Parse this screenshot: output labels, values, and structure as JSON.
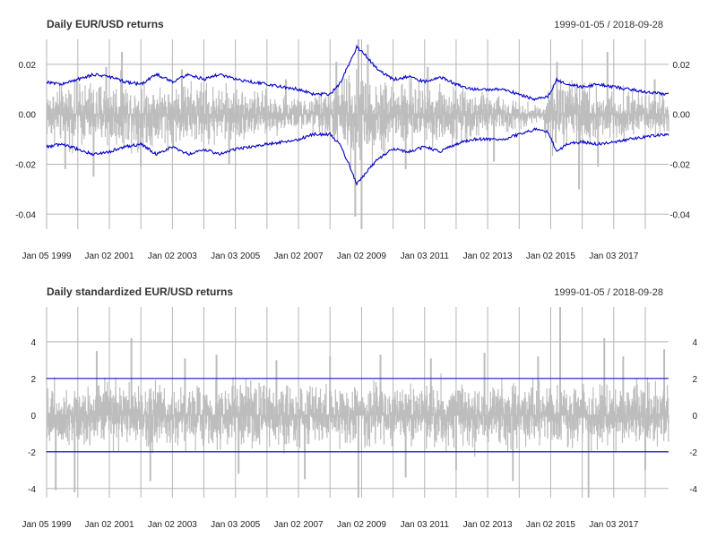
{
  "chart_data": [
    {
      "type": "line",
      "title": "Daily EUR/USD returns",
      "date_range": "1999-01-05 / 2018-09-28",
      "xlabel": "",
      "ylabel": "",
      "x_tick_labels": [
        "Jan 05 1999",
        "Jan 02 2001",
        "Jan 02 2003",
        "Jan 03 2005",
        "Jan 02 2007",
        "Jan 02 2009",
        "Jan 03 2011",
        "Jan 02 2013",
        "Jan 02 2015",
        "Jan 03 2017"
      ],
      "x_tick_years": [
        1999.01,
        2001.0,
        2003.0,
        2005.0,
        2007.0,
        2009.0,
        2011.0,
        2013.0,
        2015.0,
        2017.0
      ],
      "xlim": [
        1999.01,
        2018.74
      ],
      "y_ticks": [
        0.02,
        0.0,
        -0.02,
        -0.04
      ],
      "y_tick_labels": [
        "0.02",
        "0.00",
        "-0.02",
        "-0.04"
      ],
      "ylim": [
        -0.046,
        0.03
      ],
      "grid": true,
      "series": [
        {
          "role": "returns",
          "color": "#bdbdbd",
          "envelope": [
            [
              1999.0,
              0.016
            ],
            [
              2000.0,
              0.02
            ],
            [
              2001.0,
              0.021
            ],
            [
              2002.0,
              0.019
            ],
            [
              2003.0,
              0.019
            ],
            [
              2004.0,
              0.019
            ],
            [
              2005.0,
              0.017
            ],
            [
              2006.0,
              0.013
            ],
            [
              2007.0,
              0.009
            ],
            [
              2008.0,
              0.016
            ],
            [
              2008.7,
              0.03
            ],
            [
              2009.0,
              0.028
            ],
            [
              2010.0,
              0.022
            ],
            [
              2011.0,
              0.02
            ],
            [
              2012.0,
              0.017
            ],
            [
              2013.0,
              0.013
            ],
            [
              2014.0,
              0.009
            ],
            [
              2014.7,
              0.004
            ],
            [
              2015.0,
              0.022
            ],
            [
              2016.0,
              0.018
            ],
            [
              2017.0,
              0.015
            ],
            [
              2018.0,
              0.012
            ],
            [
              2018.74,
              0.012
            ]
          ],
          "spikes": [
            [
              1999.6,
              -0.022
            ],
            [
              2000.5,
              -0.025
            ],
            [
              2000.9,
              0.019
            ],
            [
              2001.4,
              0.025
            ],
            [
              2002.0,
              -0.021
            ],
            [
              2003.3,
              0.018
            ],
            [
              2004.8,
              -0.02
            ],
            [
              2006.6,
              0.014
            ],
            [
              2008.2,
              0.021
            ],
            [
              2008.8,
              -0.041
            ],
            [
              2008.9,
              0.03
            ],
            [
              2009.0,
              -0.046
            ],
            [
              2009.2,
              0.028
            ],
            [
              2010.4,
              -0.022
            ],
            [
              2011.1,
              0.019
            ],
            [
              2013.2,
              -0.019
            ],
            [
              2015.2,
              0.021
            ],
            [
              2015.9,
              -0.03
            ],
            [
              2016.5,
              -0.021
            ],
            [
              2016.8,
              0.025
            ],
            [
              2018.3,
              0.014
            ]
          ]
        },
        {
          "role": "upper band",
          "color": "#0000cc",
          "points": [
            [
              1999.0,
              0.013
            ],
            [
              1999.5,
              0.012
            ],
            [
              2000.0,
              0.014
            ],
            [
              2000.5,
              0.016
            ],
            [
              2001.0,
              0.015
            ],
            [
              2001.5,
              0.013
            ],
            [
              2002.0,
              0.012
            ],
            [
              2002.5,
              0.016
            ],
            [
              2003.0,
              0.013
            ],
            [
              2003.5,
              0.016
            ],
            [
              2004.0,
              0.014
            ],
            [
              2004.5,
              0.016
            ],
            [
              2005.0,
              0.014
            ],
            [
              2005.5,
              0.013
            ],
            [
              2006.0,
              0.012
            ],
            [
              2006.5,
              0.011
            ],
            [
              2007.0,
              0.01
            ],
            [
              2007.5,
              0.008
            ],
            [
              2008.0,
              0.008
            ],
            [
              2008.3,
              0.012
            ],
            [
              2008.6,
              0.02
            ],
            [
              2008.85,
              0.027
            ],
            [
              2009.1,
              0.024
            ],
            [
              2009.5,
              0.018
            ],
            [
              2010.0,
              0.014
            ],
            [
              2010.5,
              0.015
            ],
            [
              2011.0,
              0.013
            ],
            [
              2011.5,
              0.015
            ],
            [
              2012.0,
              0.012
            ],
            [
              2012.5,
              0.01
            ],
            [
              2013.0,
              0.01
            ],
            [
              2013.5,
              0.01
            ],
            [
              2014.0,
              0.008
            ],
            [
              2014.5,
              0.006
            ],
            [
              2014.9,
              0.007
            ],
            [
              2015.2,
              0.014
            ],
            [
              2015.5,
              0.012
            ],
            [
              2016.0,
              0.011
            ],
            [
              2016.5,
              0.012
            ],
            [
              2017.0,
              0.011
            ],
            [
              2017.5,
              0.01
            ],
            [
              2018.0,
              0.009
            ],
            [
              2018.74,
              0.008
            ]
          ]
        },
        {
          "role": "lower band",
          "color": "#0000cc",
          "points": [
            [
              1999.0,
              -0.013
            ],
            [
              1999.5,
              -0.012
            ],
            [
              2000.0,
              -0.014
            ],
            [
              2000.5,
              -0.016
            ],
            [
              2001.0,
              -0.015
            ],
            [
              2001.5,
              -0.013
            ],
            [
              2002.0,
              -0.012
            ],
            [
              2002.5,
              -0.016
            ],
            [
              2003.0,
              -0.013
            ],
            [
              2003.5,
              -0.016
            ],
            [
              2004.0,
              -0.014
            ],
            [
              2004.5,
              -0.016
            ],
            [
              2005.0,
              -0.014
            ],
            [
              2005.5,
              -0.013
            ],
            [
              2006.0,
              -0.012
            ],
            [
              2006.5,
              -0.011
            ],
            [
              2007.0,
              -0.01
            ],
            [
              2007.5,
              -0.008
            ],
            [
              2008.0,
              -0.008
            ],
            [
              2008.3,
              -0.012
            ],
            [
              2008.6,
              -0.02
            ],
            [
              2008.85,
              -0.028
            ],
            [
              2009.1,
              -0.024
            ],
            [
              2009.5,
              -0.018
            ],
            [
              2010.0,
              -0.014
            ],
            [
              2010.5,
              -0.015
            ],
            [
              2011.0,
              -0.013
            ],
            [
              2011.5,
              -0.015
            ],
            [
              2012.0,
              -0.012
            ],
            [
              2012.5,
              -0.01
            ],
            [
              2013.0,
              -0.01
            ],
            [
              2013.5,
              -0.01
            ],
            [
              2014.0,
              -0.008
            ],
            [
              2014.5,
              -0.006
            ],
            [
              2014.9,
              -0.007
            ],
            [
              2015.2,
              -0.015
            ],
            [
              2015.5,
              -0.012
            ],
            [
              2016.0,
              -0.011
            ],
            [
              2016.5,
              -0.012
            ],
            [
              2017.0,
              -0.011
            ],
            [
              2017.5,
              -0.01
            ],
            [
              2018.0,
              -0.009
            ],
            [
              2018.74,
              -0.008
            ]
          ]
        }
      ]
    },
    {
      "type": "line",
      "title": "Daily standardized EUR/USD returns",
      "date_range": "1999-01-05 / 2018-09-28",
      "xlabel": "",
      "ylabel": "",
      "x_tick_labels": [
        "Jan 05 1999",
        "Jan 02 2001",
        "Jan 02 2003",
        "Jan 03 2005",
        "Jan 02 2007",
        "Jan 02 2009",
        "Jan 03 2011",
        "Jan 02 2013",
        "Jan 02 2015",
        "Jan 03 2017"
      ],
      "x_tick_years": [
        1999.01,
        2001.0,
        2003.0,
        2005.0,
        2007.0,
        2009.0,
        2011.0,
        2013.0,
        2015.0,
        2017.0
      ],
      "xlim": [
        1999.01,
        2018.74
      ],
      "y_ticks": [
        4,
        2,
        0,
        -2,
        -4
      ],
      "y_tick_labels": [
        "4",
        "2",
        "0",
        "-2",
        "-4"
      ],
      "ylim": [
        -4.5,
        5.9
      ],
      "grid": true,
      "series": [
        {
          "role": "standardized returns",
          "color": "#bdbdbd",
          "envelope": [
            [
              1999.0,
              2.4
            ],
            [
              2018.74,
              2.4
            ]
          ],
          "spikes": [
            [
              1999.3,
              -4.1
            ],
            [
              1999.9,
              -4.2
            ],
            [
              2000.6,
              3.5
            ],
            [
              2001.7,
              4.2
            ],
            [
              2002.3,
              -3.6
            ],
            [
              2003.4,
              3.1
            ],
            [
              2004.4,
              3.3
            ],
            [
              2005.1,
              -3.2
            ],
            [
              2006.3,
              3.0
            ],
            [
              2007.2,
              -3.5
            ],
            [
              2008.0,
              3.2
            ],
            [
              2008.9,
              -4.5
            ],
            [
              2009.6,
              3.3
            ],
            [
              2010.4,
              -3.4
            ],
            [
              2011.2,
              3.1
            ],
            [
              2012.0,
              -3.0
            ],
            [
              2012.9,
              3.4
            ],
            [
              2013.8,
              -3.6
            ],
            [
              2014.6,
              3.2
            ],
            [
              2015.3,
              5.9
            ],
            [
              2016.2,
              -4.5
            ],
            [
              2016.7,
              4.2
            ],
            [
              2017.3,
              3.2
            ],
            [
              2018.0,
              -3.0
            ],
            [
              2018.6,
              3.6
            ]
          ]
        },
        {
          "role": "upper limit",
          "color": "#0000cc",
          "points": [
            [
              1999.0,
              2.0
            ],
            [
              2018.74,
              2.0
            ]
          ]
        },
        {
          "role": "lower limit",
          "color": "#0000cc",
          "points": [
            [
              1999.0,
              -2.0
            ],
            [
              2018.74,
              -2.0
            ]
          ]
        }
      ]
    }
  ]
}
